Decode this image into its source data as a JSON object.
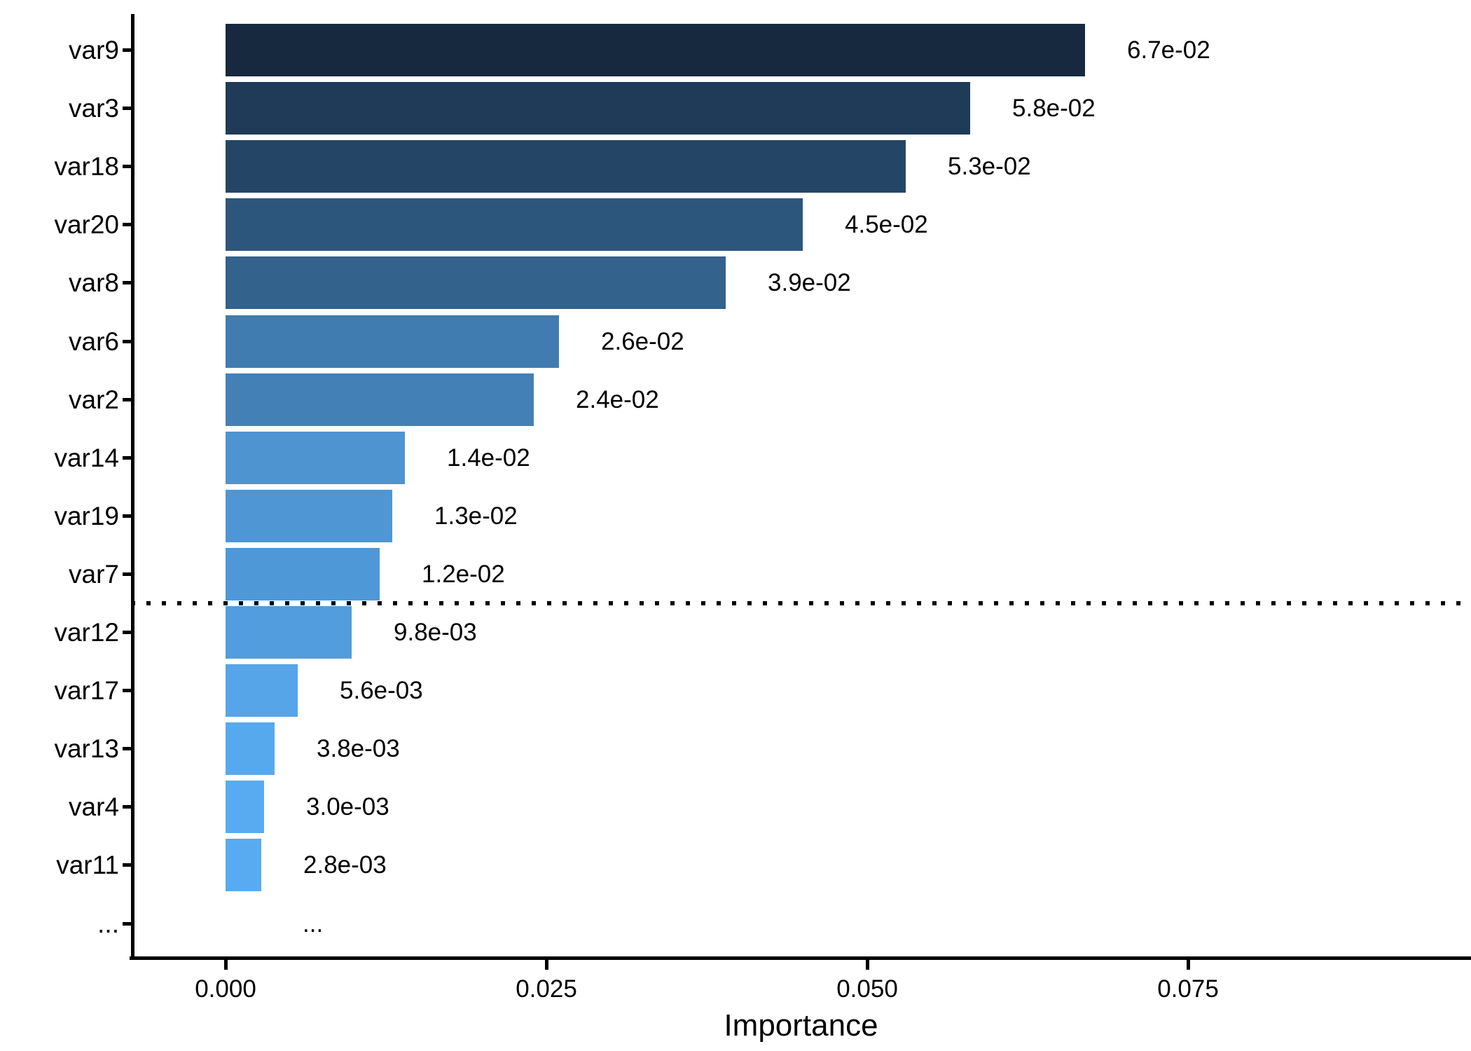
{
  "chart_data": {
    "type": "bar",
    "orientation": "horizontal",
    "title": "",
    "xlabel": "Importance",
    "ylabel": "",
    "grid": false,
    "legend": false,
    "categories": [
      "var9",
      "var3",
      "var18",
      "var20",
      "var8",
      "var6",
      "var2",
      "var14",
      "var19",
      "var7",
      "var12",
      "var17",
      "var13",
      "var4",
      "var11",
      "..."
    ],
    "values": [
      0.067,
      0.058,
      0.053,
      0.045,
      0.039,
      0.026,
      0.024,
      0.014,
      0.013,
      0.012,
      0.0098,
      0.0056,
      0.0038,
      0.003,
      0.0028,
      null
    ],
    "value_labels": [
      "6.7e-02",
      "5.8e-02",
      "5.3e-02",
      "4.5e-02",
      "3.9e-02",
      "2.6e-02",
      "2.4e-02",
      "1.4e-02",
      "1.3e-02",
      "1.2e-02",
      "9.8e-03",
      "5.6e-03",
      "3.8e-03",
      "3.0e-03",
      "2.8e-03",
      "..."
    ],
    "bar_colors": [
      "#17293f",
      "#203b58",
      "#254566",
      "#2d567c",
      "#33628c",
      "#407cb0",
      "#4380b6",
      "#4d94d1",
      "#4e96d4",
      "#4f98d7",
      "#519ddd",
      "#55a5e8",
      "#57a9ed",
      "#58abf0",
      "#58abf0",
      null
    ],
    "x_ticks": [
      {
        "value": 0.0,
        "label": "0.000"
      },
      {
        "value": 0.025,
        "label": "0.025"
      },
      {
        "value": 0.05,
        "label": "0.050"
      },
      {
        "value": 0.075,
        "label": "0.075"
      }
    ],
    "xlim": [
      0,
      0.097
    ],
    "threshold_line": {
      "between": [
        "var7",
        "var12"
      ],
      "style": "dotted",
      "color": "#000000"
    },
    "text_color": "#000000",
    "axis_color": "#000000"
  }
}
